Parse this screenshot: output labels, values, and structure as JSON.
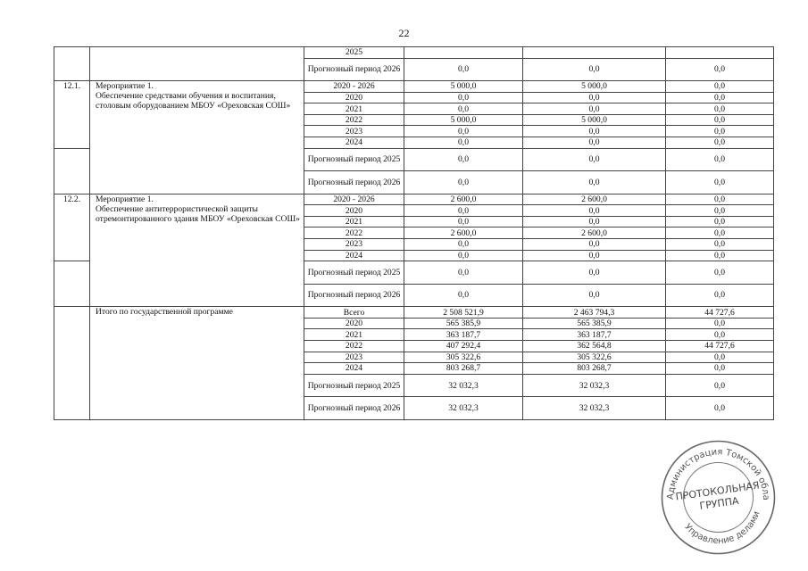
{
  "page_number": "22",
  "table": {
    "groups": [
      {
        "num": "",
        "name": "",
        "rows": [
          {
            "period": "2025",
            "total": "",
            "col2": "",
            "col3": ""
          },
          {
            "period": "Прогнозный период 2026",
            "total": "0,0",
            "col2": "0,0",
            "col3": "0,0"
          }
        ]
      },
      {
        "num": "12.1.",
        "name": "Мероприятие 1.\nОбеспечение средствами обучения и воспитания, столовым оборудованием МБОУ «Ореховская СОШ»",
        "rows": [
          {
            "period": "2020 - 2026",
            "total": "5 000,0",
            "col2": "5 000,0",
            "col3": "0,0"
          },
          {
            "period": "2020",
            "total": "0,0",
            "col2": "0,0",
            "col3": "0,0"
          },
          {
            "period": "2021",
            "total": "0,0",
            "col2": "0,0",
            "col3": "0,0"
          },
          {
            "period": "2022",
            "total": "5 000,0",
            "col2": "5 000,0",
            "col3": "0,0"
          },
          {
            "period": "2023",
            "total": "0,0",
            "col2": "0,0",
            "col3": "0,0"
          },
          {
            "period": "2024",
            "total": "0,0",
            "col2": "0,0",
            "col3": "0,0"
          },
          {
            "period": "Прогнозный период 2025",
            "total": "0,0",
            "col2": "0,0",
            "col3": "0,0"
          },
          {
            "period": "Прогнозный период 2026",
            "total": "0,0",
            "col2": "0,0",
            "col3": "0,0"
          }
        ]
      },
      {
        "num": "12.2.",
        "name": "Мероприятие 1.\nОбеспечение антитеррористической защиты отремонтированного здания МБОУ «Ореховская СОШ»",
        "rows": [
          {
            "period": "2020 - 2026",
            "total": "2 600,0",
            "col2": "2 600,0",
            "col3": "0,0"
          },
          {
            "period": "2020",
            "total": "0,0",
            "col2": "0,0",
            "col3": "0,0"
          },
          {
            "period": "2021",
            "total": "0,0",
            "col2": "0,0",
            "col3": "0,0"
          },
          {
            "period": "2022",
            "total": "2 600,0",
            "col2": "2 600,0",
            "col3": "0,0"
          },
          {
            "period": "2023",
            "total": "0,0",
            "col2": "0,0",
            "col3": "0,0"
          },
          {
            "period": "2024",
            "total": "0,0",
            "col2": "0,0",
            "col3": "0,0"
          },
          {
            "period": "Прогнозный период 2025",
            "total": "0,0",
            "col2": "0,0",
            "col3": "0,0"
          },
          {
            "period": "Прогнозный период 2026",
            "total": "0,0",
            "col2": "0,0",
            "col3": "0,0"
          }
        ]
      },
      {
        "num": "",
        "name": "Итого по государственной программе",
        "rows": [
          {
            "period": "Всего",
            "total": "2 508 521,9",
            "col2": "2 463 794,3",
            "col3": "44 727,6"
          },
          {
            "period": "2020",
            "total": "565 385,9",
            "col2": "565 385,9",
            "col3": "0,0"
          },
          {
            "period": "2021",
            "total": "363 187,7",
            "col2": "363 187,7",
            "col3": "0,0"
          },
          {
            "period": "2022",
            "total": "407 292,4",
            "col2": "362 564,8",
            "col3": "44 727,6"
          },
          {
            "period": "2023",
            "total": "305 322,6",
            "col2": "305 322,6",
            "col3": "0,0"
          },
          {
            "period": "2024",
            "total": "803 268,7",
            "col2": "803 268,7",
            "col3": "0,0"
          },
          {
            "period": "Прогнозный период 2025",
            "total": "32 032,3",
            "col2": "32 032,3",
            "col3": "0,0"
          },
          {
            "period": "Прогнозный период 2026",
            "total": "32 032,3",
            "col2": "32 032,3",
            "col3": "0,0"
          }
        ]
      }
    ]
  },
  "stamp": {
    "outer_text": "Администрация Томской области • Управление делами •",
    "inner_text": "ПРОТОКОЛЬНАЯ ГРУППА",
    "color": "#555555"
  }
}
